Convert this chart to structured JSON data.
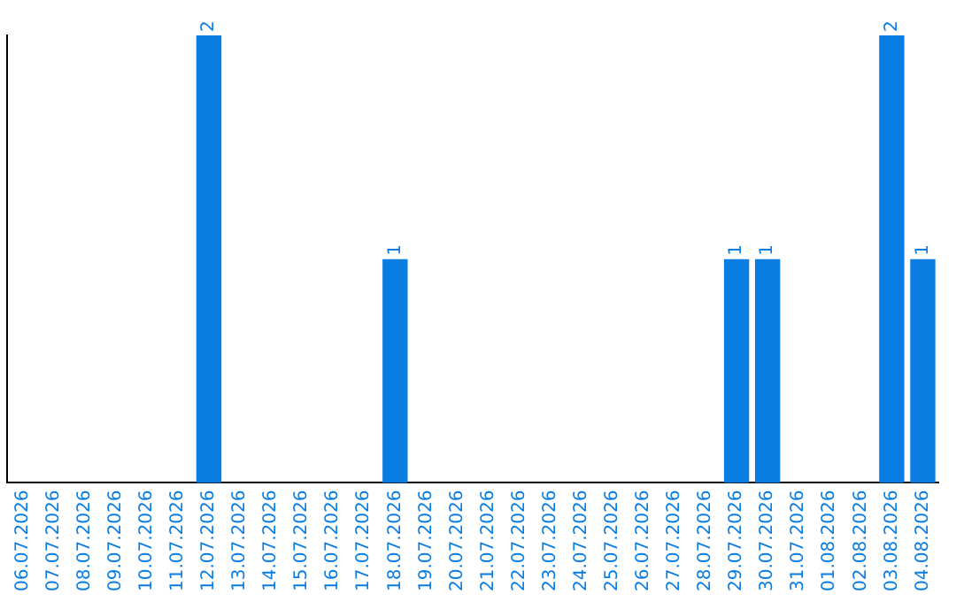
{
  "chart_data": {
    "type": "bar",
    "categories": [
      "06.07.2026",
      "07.07.2026",
      "08.07.2026",
      "09.07.2026",
      "10.07.2026",
      "11.07.2026",
      "12.07.2026",
      "13.07.2026",
      "14.07.2026",
      "15.07.2026",
      "16.07.2026",
      "17.07.2026",
      "18.07.2026",
      "19.07.2026",
      "20.07.2026",
      "21.07.2026",
      "22.07.2026",
      "23.07.2026",
      "24.07.2026",
      "25.07.2026",
      "26.07.2026",
      "27.07.2026",
      "28.07.2026",
      "29.07.2026",
      "30.07.2026",
      "31.07.2026",
      "01.08.2026",
      "02.08.2026",
      "03.08.2026",
      "04.08.2026"
    ],
    "values": [
      0,
      0,
      0,
      0,
      0,
      0,
      2,
      0,
      0,
      0,
      0,
      0,
      1,
      0,
      0,
      0,
      0,
      0,
      0,
      0,
      0,
      0,
      0,
      1,
      1,
      0,
      0,
      0,
      2,
      1
    ],
    "value_labels": [
      null,
      null,
      null,
      null,
      null,
      null,
      "2",
      null,
      null,
      null,
      null,
      null,
      "1",
      null,
      null,
      null,
      null,
      null,
      null,
      null,
      null,
      null,
      null,
      "1",
      "1",
      null,
      null,
      null,
      "2",
      "1"
    ],
    "color": "#0a7de3",
    "ylim": [
      0,
      2
    ],
    "tick_labels": "x",
    "grid": false,
    "legend": false
  }
}
